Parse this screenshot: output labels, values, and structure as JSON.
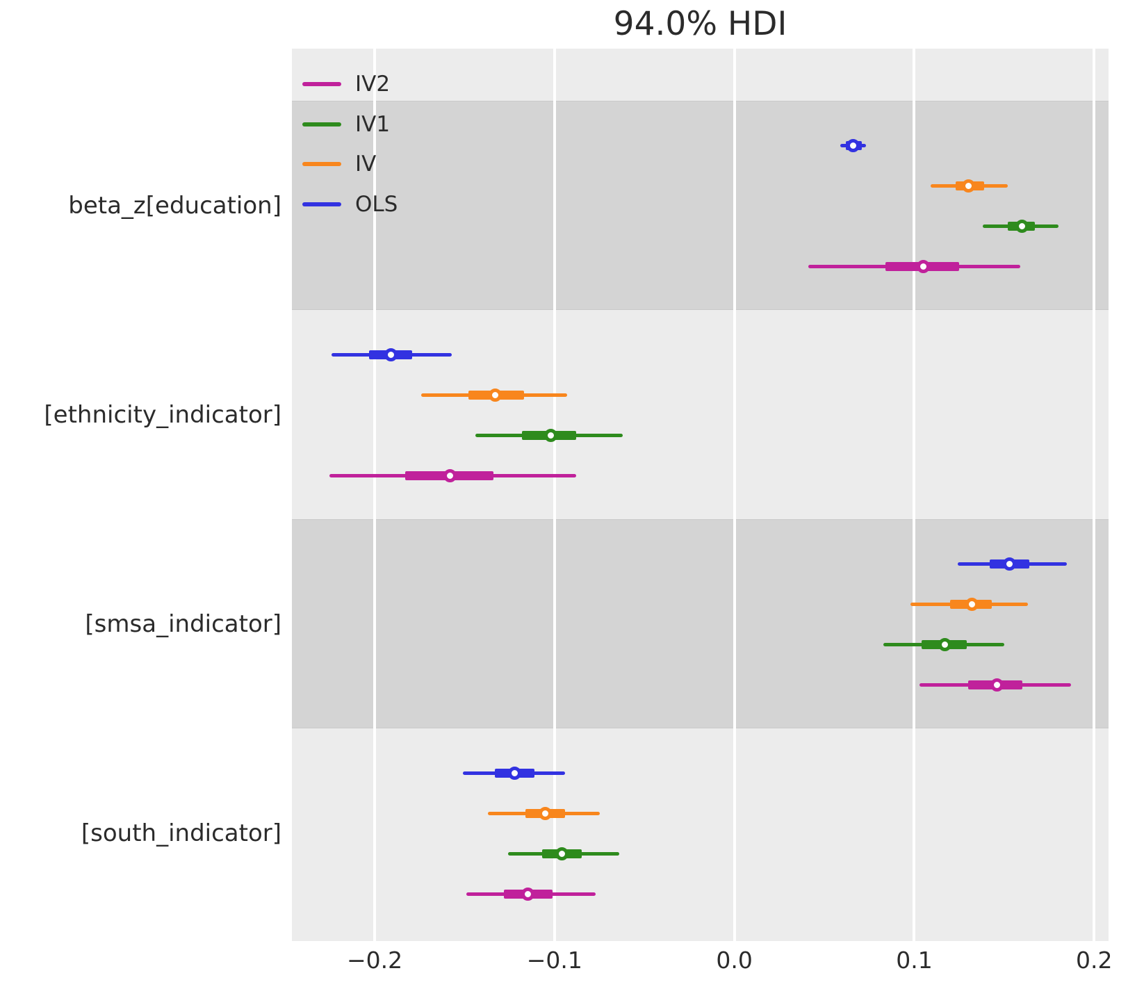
{
  "title": "94.0% HDI",
  "legend": {
    "position": "upper-left",
    "items": [
      {
        "label": "IV2",
        "color": "#c0219b"
      },
      {
        "label": "IV1",
        "color": "#2e8b1d"
      },
      {
        "label": "IV",
        "color": "#f8861d"
      },
      {
        "label": "OLS",
        "color": "#3232e1"
      }
    ]
  },
  "chart_data": {
    "type": "forest",
    "title": "94.0% HDI",
    "hdi_prob": 0.94,
    "xlabel": "",
    "xlim": [
      -0.246,
      0.208
    ],
    "x_ticks": [
      -0.2,
      -0.1,
      0.0,
      0.1,
      0.2
    ],
    "x_tick_labels": [
      "−0.2",
      "−0.1",
      "0.0",
      "0.1",
      "0.2"
    ],
    "grid": "vertical-white-gridlines",
    "legend_position": "upper-left",
    "row_order_top_to_bottom": [
      "OLS",
      "IV",
      "IV1",
      "IV2"
    ],
    "series_colors": {
      "OLS": "#3232e1",
      "IV": "#f8861d",
      "IV1": "#2e8b1d",
      "IV2": "#c0219b"
    },
    "colors": {
      "plot_background": "#ececec",
      "shaded_band": "#d4d4d4",
      "gridline": "#ffffff",
      "text": "#2b2b2b",
      "marker_face": "#fdfdfd"
    },
    "groups": [
      {
        "label": "beta_z[education]",
        "shaded": true,
        "rows": [
          {
            "model": "OLS",
            "hdi94": [
              0.059,
              0.073
            ],
            "quartile": [
              0.062,
              0.071
            ],
            "median": 0.066
          },
          {
            "model": "IV",
            "hdi94": [
              0.109,
              0.152
            ],
            "quartile": [
              0.123,
              0.139
            ],
            "median": 0.13
          },
          {
            "model": "IV1",
            "hdi94": [
              0.138,
              0.18
            ],
            "quartile": [
              0.152,
              0.167
            ],
            "median": 0.16
          },
          {
            "model": "IV2",
            "hdi94": [
              0.041,
              0.159
            ],
            "quartile": [
              0.084,
              0.125
            ],
            "median": 0.105
          }
        ]
      },
      {
        "label": "[ethnicity_indicator]",
        "shaded": false,
        "rows": [
          {
            "model": "OLS",
            "hdi94": [
              -0.224,
              -0.157
            ],
            "quartile": [
              -0.203,
              -0.179
            ],
            "median": -0.191
          },
          {
            "model": "IV",
            "hdi94": [
              -0.174,
              -0.093
            ],
            "quartile": [
              -0.148,
              -0.117
            ],
            "median": -0.133
          },
          {
            "model": "IV1",
            "hdi94": [
              -0.144,
              -0.062
            ],
            "quartile": [
              -0.118,
              -0.088
            ],
            "median": -0.102
          },
          {
            "model": "IV2",
            "hdi94": [
              -0.225,
              -0.088
            ],
            "quartile": [
              -0.183,
              -0.134
            ],
            "median": -0.158
          }
        ]
      },
      {
        "label": "[smsa_indicator]",
        "shaded": true,
        "rows": [
          {
            "model": "OLS",
            "hdi94": [
              0.124,
              0.185
            ],
            "quartile": [
              0.142,
              0.164
            ],
            "median": 0.153
          },
          {
            "model": "IV",
            "hdi94": [
              0.098,
              0.163
            ],
            "quartile": [
              0.12,
              0.143
            ],
            "median": 0.132
          },
          {
            "model": "IV1",
            "hdi94": [
              0.083,
              0.15
            ],
            "quartile": [
              0.104,
              0.129
            ],
            "median": 0.117
          },
          {
            "model": "IV2",
            "hdi94": [
              0.103,
              0.187
            ],
            "quartile": [
              0.13,
              0.16
            ],
            "median": 0.146
          }
        ]
      },
      {
        "label": "[south_indicator]",
        "shaded": false,
        "rows": [
          {
            "model": "OLS",
            "hdi94": [
              -0.151,
              -0.094
            ],
            "quartile": [
              -0.133,
              -0.111
            ],
            "median": -0.122
          },
          {
            "model": "IV",
            "hdi94": [
              -0.137,
              -0.075
            ],
            "quartile": [
              -0.116,
              -0.094
            ],
            "median": -0.105
          },
          {
            "model": "IV1",
            "hdi94": [
              -0.126,
              -0.064
            ],
            "quartile": [
              -0.107,
              -0.085
            ],
            "median": -0.096
          },
          {
            "model": "IV2",
            "hdi94": [
              -0.149,
              -0.077
            ],
            "quartile": [
              -0.128,
              -0.101
            ],
            "median": -0.115
          }
        ]
      }
    ]
  }
}
